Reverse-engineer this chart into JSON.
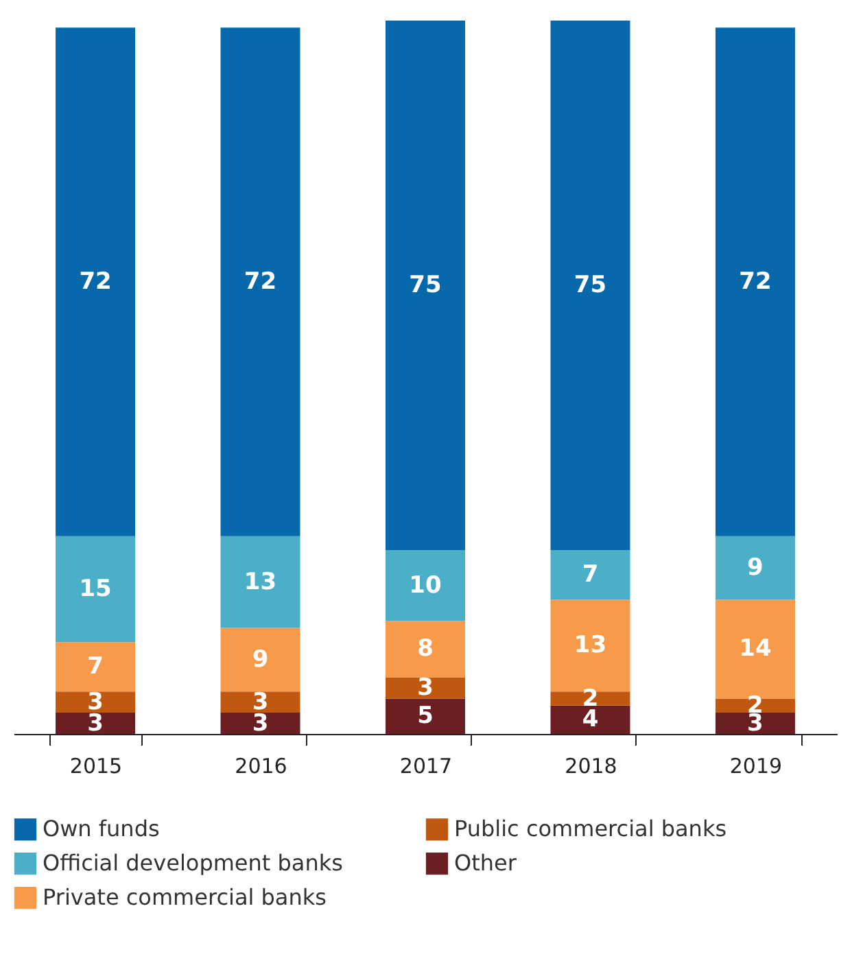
{
  "chart_data": {
    "type": "bar",
    "stacked": true,
    "data_labels": true,
    "legend": "bottom",
    "categories": [
      "2015",
      "2016",
      "2017",
      "2018",
      "2019"
    ],
    "series": [
      {
        "name": "Other",
        "color": "#6b1f22",
        "values": [
          3,
          3,
          5,
          4,
          3
        ]
      },
      {
        "name": "Public commercial banks",
        "color": "#c0580f",
        "values": [
          3,
          3,
          3,
          2,
          2
        ]
      },
      {
        "name": "Private commercial banks",
        "color": "#f79a4a",
        "values": [
          7,
          9,
          8,
          13,
          14
        ]
      },
      {
        "name": "Official development banks",
        "color": "#4bafc8",
        "values": [
          15,
          13,
          10,
          7,
          9
        ]
      },
      {
        "name": "Own funds",
        "color": "#0868ac",
        "values": [
          72,
          72,
          75,
          75,
          72
        ]
      }
    ]
  }
}
